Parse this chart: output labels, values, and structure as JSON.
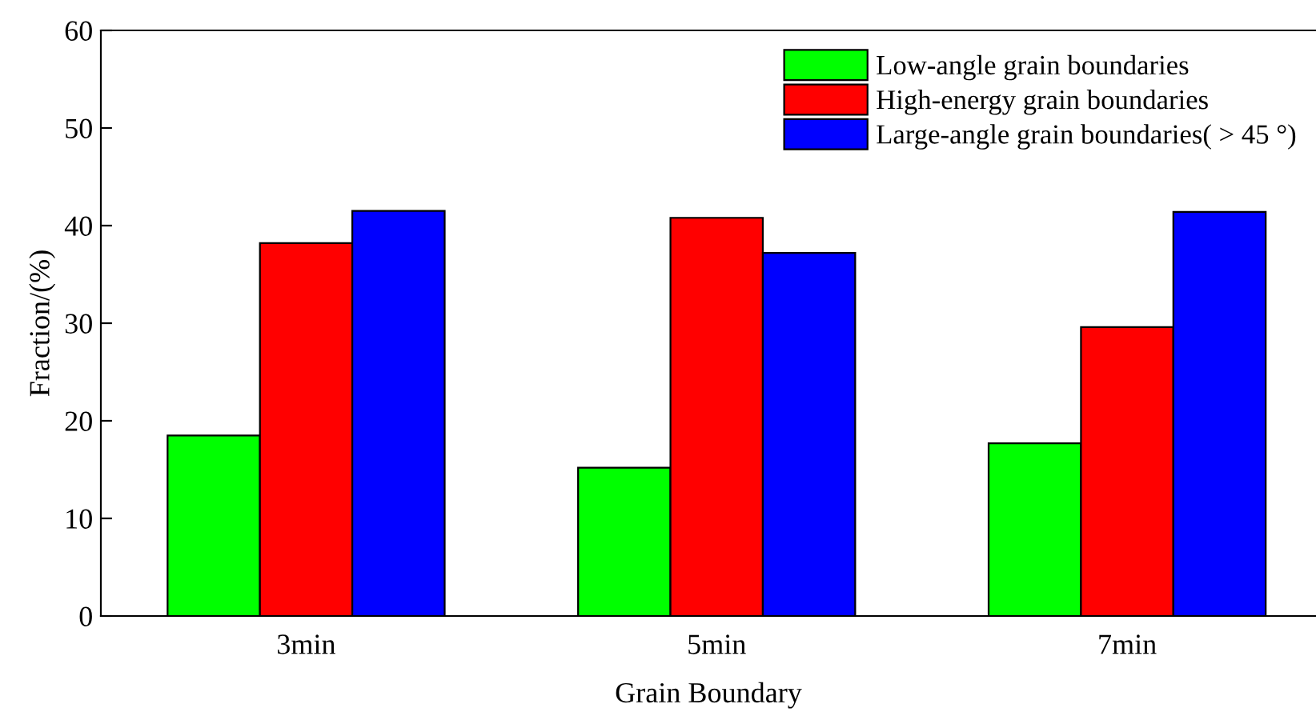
{
  "chart_data": {
    "type": "bar",
    "xlabel": "Grain Boundary",
    "ylabel": "Fraction/(%)",
    "categories": [
      "3min",
      "5min",
      "7min"
    ],
    "series": [
      {
        "name": "Low-angle grain boundaries",
        "color": "#00ff00",
        "values": [
          18.5,
          15.2,
          17.7
        ]
      },
      {
        "name": "High-energy grain boundaries",
        "color": "#ff0000",
        "values": [
          38.2,
          40.8,
          29.6
        ]
      },
      {
        "name": "Large-angle grain boundaries( > 45 °)",
        "color": "#0000ff",
        "values": [
          41.5,
          37.2,
          41.4
        ]
      }
    ],
    "ylim": [
      0,
      60
    ],
    "yticks": [
      0,
      10,
      20,
      30,
      40,
      50,
      60
    ],
    "grid": false,
    "legend": "top right"
  }
}
